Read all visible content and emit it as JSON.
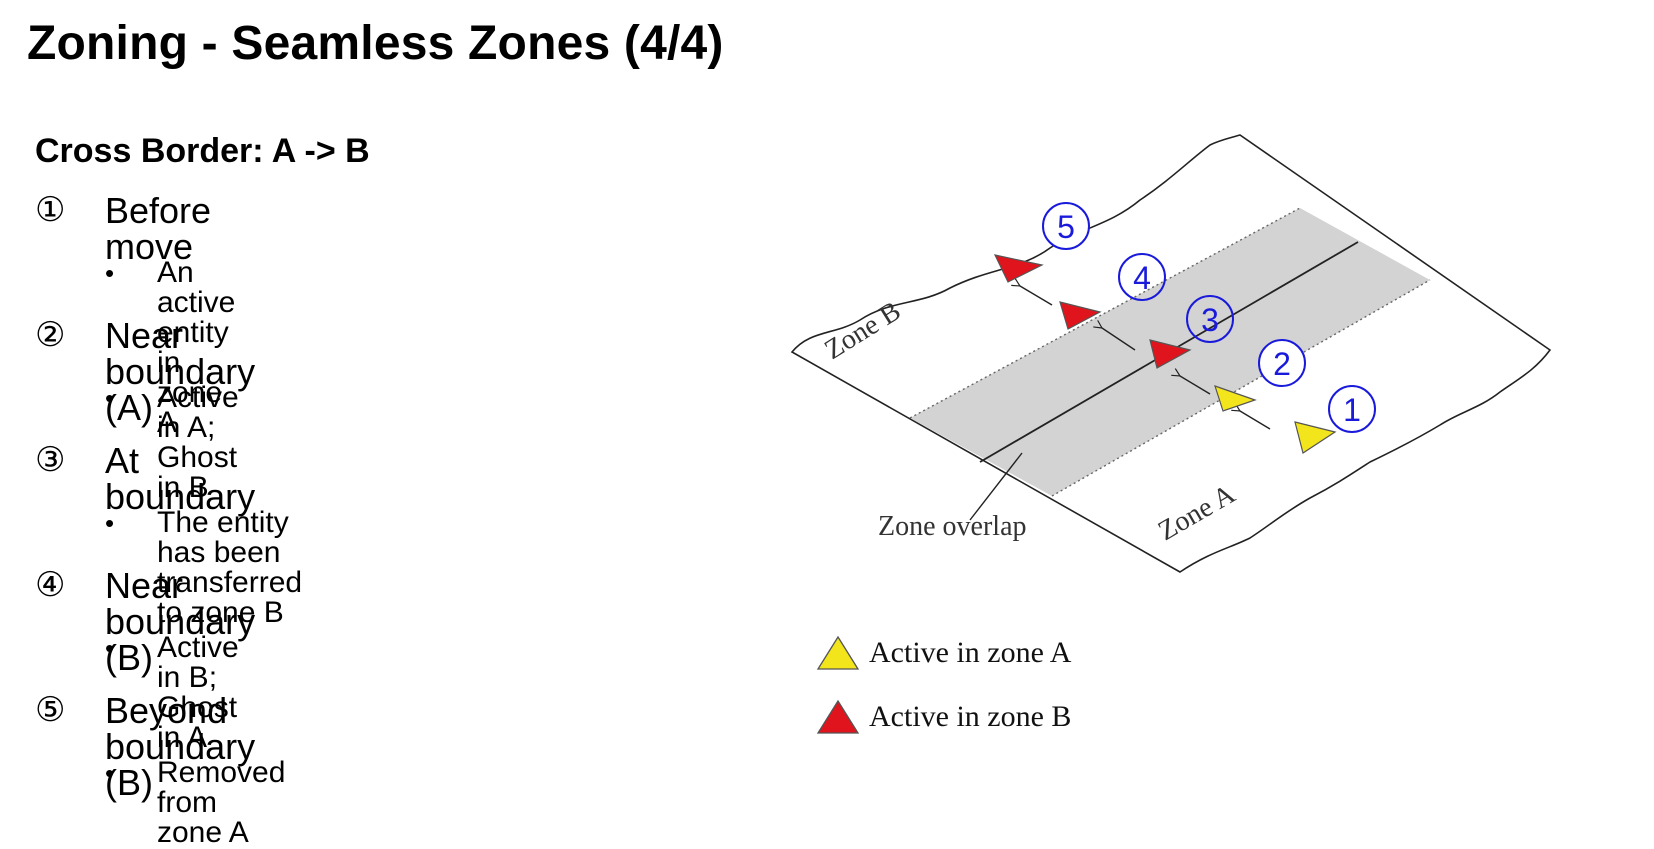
{
  "header": {
    "title": "Zoning - Seamless Zones (4/4)"
  },
  "section": {
    "subtitle": "Cross Border: A -> B"
  },
  "steps": [
    {
      "marker": "①",
      "label": "Before move",
      "bullet": "•",
      "detail": "An active entity in zone A"
    },
    {
      "marker": "②",
      "label": "Near boundary (A)",
      "bullet": "•",
      "detail": "Active in A; Ghost in B"
    },
    {
      "marker": "③",
      "label": "At boundary",
      "bullet": "•",
      "detail": "The entity has been transferred to zone B"
    },
    {
      "marker": "④",
      "label": "Near boundary (B)",
      "bullet": "•",
      "detail": "Active in B; Ghost in A"
    },
    {
      "marker": "⑤",
      "label": "Beyond boundary (B)",
      "bullet": "•",
      "detail": "Removed from zone A"
    }
  ],
  "diagram": {
    "zone_a_label": "Zone A",
    "zone_b_label": "Zone B",
    "overlap_label": "Zone overlap",
    "position_markers": [
      "1",
      "2",
      "3",
      "4",
      "5"
    ],
    "colors": {
      "overlap_fill": "#d3d3d3",
      "marker_blue": "#1a1adb",
      "active_a": "#f2e51c",
      "active_b": "#e0141c"
    }
  },
  "legend": {
    "active_a": "Active in zone A",
    "active_b": "Active in zone B"
  }
}
